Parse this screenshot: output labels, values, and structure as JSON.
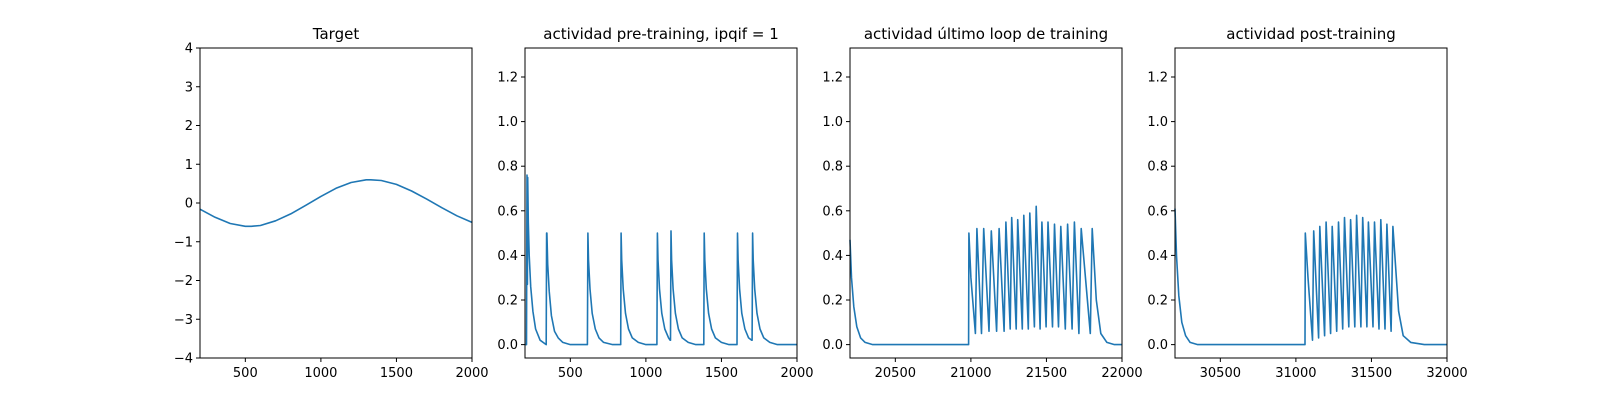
{
  "colors": {
    "series": "#1f77b4",
    "axes": "#000000",
    "background": "#ffffff"
  },
  "chart_data": [
    {
      "type": "line",
      "title": "Target",
      "xlabel": "",
      "ylabel": "",
      "xlim": [
        200,
        2000
      ],
      "ylim": [
        -4,
        4
      ],
      "xticks": [
        500,
        1000,
        1500,
        2000
      ],
      "yticks": [
        -4,
        -3,
        -2,
        -1,
        0,
        1,
        2,
        3,
        4
      ],
      "grid": false,
      "series": [
        {
          "x": [
            200,
            300,
            400,
            500,
            540,
            600,
            700,
            800,
            900,
            1000,
            1100,
            1200,
            1300,
            1330,
            1400,
            1500,
            1600,
            1700,
            1800,
            1900,
            2000
          ],
          "y": [
            -0.16,
            -0.37,
            -0.53,
            -0.6,
            -0.6,
            -0.58,
            -0.46,
            -0.28,
            -0.06,
            0.17,
            0.38,
            0.53,
            0.6,
            0.6,
            0.58,
            0.48,
            0.31,
            0.1,
            -0.12,
            -0.33,
            -0.5
          ]
        }
      ]
    },
    {
      "type": "line",
      "title": "actividad pre-training, ipqif = 1",
      "xlabel": "",
      "ylabel": "",
      "xlim": [
        200,
        2000
      ],
      "ylim": [
        -0.06,
        1.33
      ],
      "xticks": [
        500,
        1000,
        1500,
        2000
      ],
      "yticks": [
        0.0,
        0.2,
        0.4,
        0.6,
        0.8,
        1.0,
        1.2
      ],
      "grid": false,
      "series": [
        {
          "x": [
            200,
            205,
            210,
            213,
            216,
            218,
            222,
            228,
            238,
            252,
            270,
            300,
            340,
            343,
            345,
            350,
            360,
            375,
            395,
            420,
            450,
            500,
            560,
            600,
            613,
            616,
            620,
            630,
            645,
            665,
            690,
            720,
            780,
            830,
            833,
            836,
            840,
            850,
            865,
            885,
            910,
            950,
            1000,
            1070,
            1073,
            1076,
            1080,
            1090,
            1105,
            1125,
            1150,
            1160,
            1163,
            1166,
            1170,
            1180,
            1195,
            1215,
            1240,
            1280,
            1330,
            1380,
            1383,
            1386,
            1390,
            1400,
            1415,
            1435,
            1460,
            1500,
            1550,
            1600,
            1603,
            1606,
            1610,
            1620,
            1635,
            1655,
            1680,
            1700,
            1703,
            1706,
            1710,
            1720,
            1735,
            1755,
            1780,
            1820,
            1870,
            1930,
            2000
          ],
          "y": [
            0.0,
            0.0,
            0.0,
            0.76,
            0.27,
            0.75,
            0.55,
            0.4,
            0.26,
            0.15,
            0.07,
            0.02,
            0.0,
            0.5,
            0.5,
            0.36,
            0.24,
            0.13,
            0.06,
            0.03,
            0.01,
            0.0,
            0.0,
            0.0,
            0.0,
            0.5,
            0.38,
            0.25,
            0.14,
            0.07,
            0.03,
            0.01,
            0.0,
            0.0,
            0.0,
            0.5,
            0.38,
            0.25,
            0.14,
            0.07,
            0.03,
            0.01,
            0.0,
            0.0,
            0.0,
            0.5,
            0.38,
            0.25,
            0.14,
            0.07,
            0.03,
            0.02,
            0.02,
            0.51,
            0.38,
            0.25,
            0.14,
            0.07,
            0.03,
            0.01,
            0.0,
            0.0,
            0.0,
            0.5,
            0.38,
            0.25,
            0.14,
            0.07,
            0.03,
            0.01,
            0.0,
            0.0,
            0.0,
            0.5,
            0.38,
            0.25,
            0.14,
            0.07,
            0.03,
            0.02,
            0.02,
            0.5,
            0.38,
            0.25,
            0.14,
            0.07,
            0.03,
            0.01,
            0.0,
            0.0,
            0.0
          ]
        }
      ]
    },
    {
      "type": "line",
      "title": "actividad último loop de training",
      "xlabel": "",
      "ylabel": "",
      "xlim": [
        20200,
        22000
      ],
      "ylim": [
        -0.06,
        1.33
      ],
      "xticks": [
        20500,
        21000,
        21500,
        22000
      ],
      "yticks": [
        0.0,
        0.2,
        0.4,
        0.6,
        0.8,
        1.0,
        1.2
      ],
      "grid": false,
      "series": [
        {
          "x": [
            20200,
            20210,
            20225,
            20245,
            20270,
            20300,
            20350,
            20400,
            20500,
            20700,
            20900,
            20985,
            20987,
            21000,
            21030,
            21040,
            21070,
            21085,
            21120,
            21135,
            21170,
            21187,
            21220,
            21232,
            21260,
            21270,
            21300,
            21310,
            21340,
            21350,
            21380,
            21390,
            21420,
            21432,
            21458,
            21470,
            21498,
            21510,
            21540,
            21553,
            21580,
            21595,
            21625,
            21640,
            21670,
            21685,
            21715,
            21730,
            21790,
            21803,
            21830,
            21860,
            21900,
            21950,
            22000
          ],
          "y": [
            0.47,
            0.3,
            0.17,
            0.08,
            0.03,
            0.01,
            0.0,
            0.0,
            0.0,
            0.0,
            0.0,
            0.0,
            0.5,
            0.3,
            0.05,
            0.52,
            0.05,
            0.52,
            0.06,
            0.51,
            0.06,
            0.52,
            0.06,
            0.55,
            0.07,
            0.57,
            0.07,
            0.56,
            0.07,
            0.58,
            0.07,
            0.59,
            0.08,
            0.62,
            0.07,
            0.55,
            0.08,
            0.55,
            0.08,
            0.54,
            0.08,
            0.53,
            0.07,
            0.54,
            0.07,
            0.55,
            0.05,
            0.52,
            0.05,
            0.52,
            0.2,
            0.05,
            0.01,
            0.0,
            0.0
          ]
        }
      ]
    },
    {
      "type": "line",
      "title": "actividad post-training",
      "xlabel": "",
      "ylabel": "",
      "xlim": [
        30200,
        32000
      ],
      "ylim": [
        -0.06,
        1.33
      ],
      "xticks": [
        30500,
        31000,
        31500,
        32000
      ],
      "yticks": [
        0.0,
        0.2,
        0.4,
        0.6,
        0.8,
        1.0,
        1.2
      ],
      "grid": false,
      "series": [
        {
          "x": [
            30200,
            30210,
            30225,
            30245,
            30270,
            30300,
            30350,
            30400,
            30500,
            30700,
            30900,
            31060,
            31062,
            31080,
            31110,
            31118,
            31150,
            31158,
            31190,
            31200,
            31230,
            31240,
            31270,
            31282,
            31310,
            31322,
            31350,
            31362,
            31390,
            31402,
            31430,
            31442,
            31470,
            31480,
            31510,
            31520,
            31550,
            31562,
            31590,
            31602,
            31630,
            31642,
            31680,
            31710,
            31760,
            31850,
            32000
          ],
          "y": [
            0.61,
            0.4,
            0.22,
            0.1,
            0.04,
            0.01,
            0.0,
            0.0,
            0.0,
            0.0,
            0.0,
            0.0,
            0.5,
            0.3,
            0.02,
            0.51,
            0.03,
            0.53,
            0.04,
            0.55,
            0.05,
            0.53,
            0.06,
            0.55,
            0.07,
            0.57,
            0.08,
            0.56,
            0.08,
            0.58,
            0.08,
            0.57,
            0.08,
            0.55,
            0.08,
            0.55,
            0.07,
            0.56,
            0.07,
            0.54,
            0.06,
            0.53,
            0.15,
            0.04,
            0.01,
            0.0,
            0.0
          ]
        }
      ]
    }
  ]
}
